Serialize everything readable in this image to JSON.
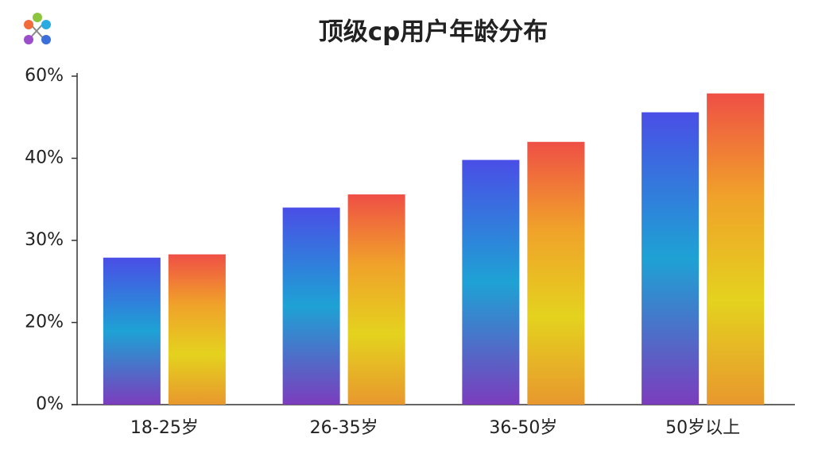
{
  "chart_data": {
    "type": "bar",
    "title": "顶级cp用户年龄分布",
    "categories": [
      "18-25岁",
      "26-35岁",
      "36-50岁",
      "50岁以上"
    ],
    "series": [
      {
        "gradient": [
          "#4a4ee6",
          "#1ea2d4",
          "#7b3dbd"
        ],
        "values": [
          27.9,
          34.0,
          39.8,
          51.2
        ]
      },
      {
        "gradient": [
          "#ef4f45",
          "#f0a22a",
          "#e4d21e",
          "#e8982e"
        ],
        "values": [
          28.3,
          35.6,
          44.0,
          55.8
        ]
      }
    ],
    "ylim": [
      0,
      60
    ],
    "yticks": [
      {
        "value": 0,
        "label": "0%"
      },
      {
        "value": 20,
        "label": "20%"
      },
      {
        "value": 30,
        "label": "30%"
      },
      {
        "value": 40,
        "label": "40%"
      },
      {
        "value": 60,
        "label": "60%"
      }
    ]
  }
}
